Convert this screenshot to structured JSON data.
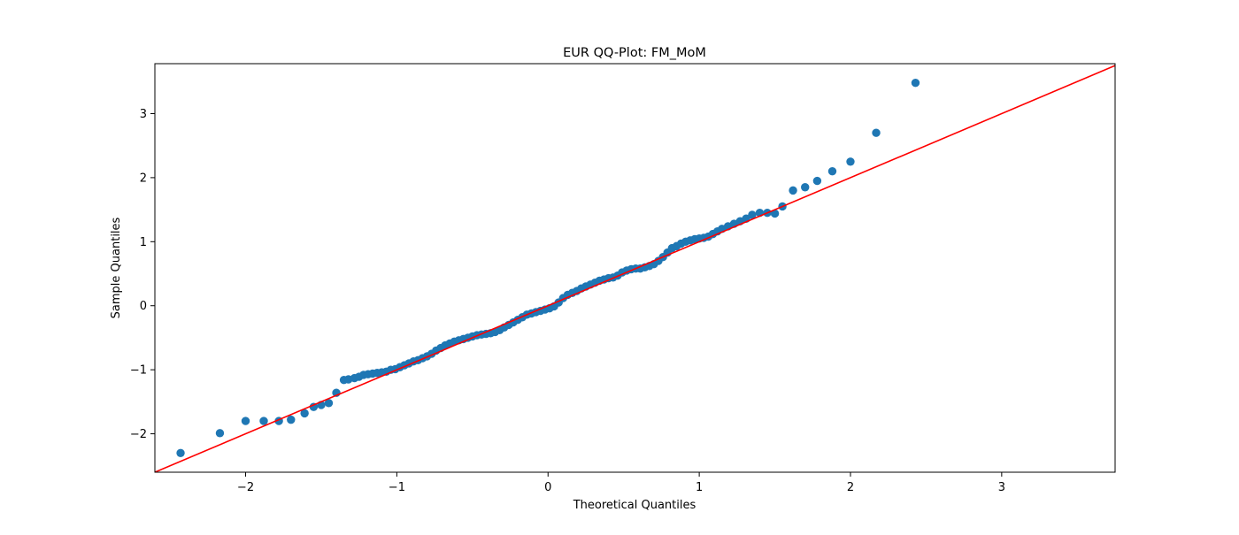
{
  "chart_data": {
    "type": "scatter",
    "title": "EUR QQ-Plot: FM_MoM",
    "xlabel": "Theoretical Quantiles",
    "ylabel": "Sample Quantiles",
    "xlim": [
      -2.6,
      3.75
    ],
    "ylim": [
      -2.6,
      3.78
    ],
    "xticks": [
      -2,
      -1,
      0,
      1,
      2,
      3
    ],
    "yticks": [
      -2,
      -1,
      0,
      1,
      2,
      3
    ],
    "xtick_labels": [
      "−2",
      "−1",
      "0",
      "1",
      "2",
      "3"
    ],
    "ytick_labels": [
      "−2",
      "−1",
      "0",
      "1",
      "2",
      "3"
    ],
    "grid": false,
    "marker_color": "#1f77b4",
    "reference_line": {
      "color": "#ff0000",
      "slope": 1,
      "intercept": 0
    },
    "series": [
      {
        "x": [
          -2.43,
          -2.17,
          -2.0,
          -1.88,
          -1.78,
          -1.7,
          -1.61,
          -1.55,
          -1.5,
          -1.45,
          -1.4,
          -1.35,
          -1.32,
          -1.28,
          -1.25,
          -1.22,
          -1.19,
          -1.16,
          -1.13,
          -1.1,
          -1.07,
          -1.04,
          -1.01,
          -0.98,
          -0.95,
          -0.92,
          -0.89,
          -0.86,
          -0.83,
          -0.8,
          -0.77,
          -0.74,
          -0.71,
          -0.68,
          -0.65,
          -0.62,
          -0.59,
          -0.56,
          -0.53,
          -0.5,
          -0.47,
          -0.44,
          -0.41,
          -0.38,
          -0.35,
          -0.32,
          -0.29,
          -0.26,
          -0.23,
          -0.2,
          -0.17,
          -0.14,
          -0.11,
          -0.08,
          -0.05,
          -0.02,
          0.01,
          0.04,
          0.07,
          0.1,
          0.13,
          0.16,
          0.19,
          0.22,
          0.25,
          0.28,
          0.31,
          0.34,
          0.37,
          0.4,
          0.43,
          0.46,
          0.49,
          0.52,
          0.55,
          0.58,
          0.61,
          0.64,
          0.67,
          0.7,
          0.73,
          0.76,
          0.79,
          0.82,
          0.85,
          0.88,
          0.91,
          0.94,
          0.97,
          1.0,
          1.03,
          1.06,
          1.09,
          1.12,
          1.15,
          1.19,
          1.23,
          1.27,
          1.31,
          1.35,
          1.4,
          1.45,
          1.5,
          1.55,
          1.62,
          1.7,
          1.78,
          1.88,
          2.0,
          2.17,
          2.43
        ],
        "y": [
          -2.3,
          -1.99,
          -1.8,
          -1.8,
          -1.8,
          -1.78,
          -1.68,
          -1.58,
          -1.55,
          -1.52,
          -1.36,
          -1.16,
          -1.15,
          -1.13,
          -1.11,
          -1.08,
          -1.07,
          -1.06,
          -1.05,
          -1.04,
          -1.03,
          -1.0,
          -0.99,
          -0.96,
          -0.93,
          -0.9,
          -0.87,
          -0.85,
          -0.82,
          -0.79,
          -0.75,
          -0.7,
          -0.66,
          -0.62,
          -0.59,
          -0.56,
          -0.54,
          -0.52,
          -0.5,
          -0.48,
          -0.46,
          -0.45,
          -0.44,
          -0.43,
          -0.41,
          -0.38,
          -0.34,
          -0.3,
          -0.26,
          -0.22,
          -0.18,
          -0.14,
          -0.12,
          -0.1,
          -0.08,
          -0.06,
          -0.04,
          -0.01,
          0.05,
          0.12,
          0.17,
          0.2,
          0.23,
          0.27,
          0.3,
          0.33,
          0.36,
          0.39,
          0.41,
          0.43,
          0.44,
          0.47,
          0.52,
          0.55,
          0.57,
          0.58,
          0.58,
          0.6,
          0.62,
          0.65,
          0.7,
          0.76,
          0.83,
          0.9,
          0.93,
          0.97,
          1.0,
          1.02,
          1.04,
          1.05,
          1.06,
          1.08,
          1.12,
          1.16,
          1.2,
          1.24,
          1.28,
          1.32,
          1.36,
          1.42,
          1.45,
          1.45,
          1.44,
          1.55,
          1.8,
          1.85,
          1.95,
          2.1,
          2.25,
          2.7,
          3.48
        ]
      }
    ]
  }
}
